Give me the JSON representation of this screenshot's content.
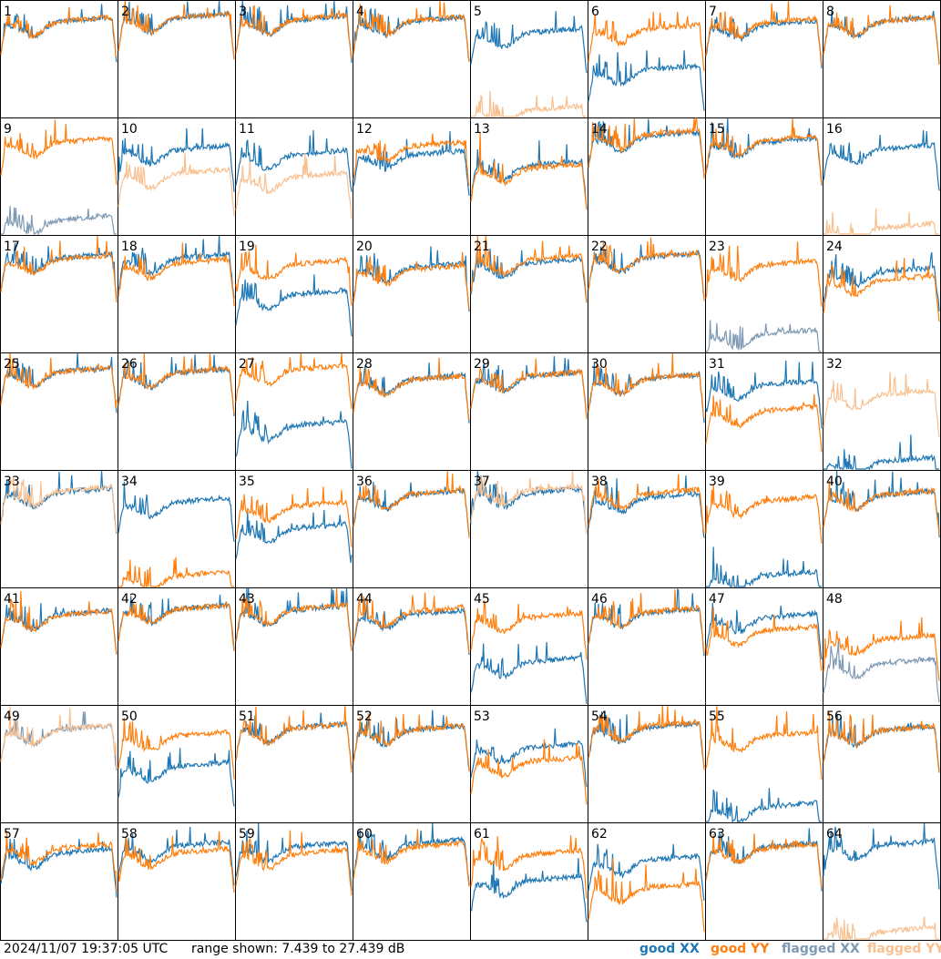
{
  "footer": {
    "timestamp": "2024/11/07 19:37:05 UTC",
    "range_text": "range shown: 7.439 to 27.439 dB"
  },
  "legend": [
    {
      "label": "good XX",
      "color": "#1f77b4"
    },
    {
      "label": "good YY",
      "color": "#ff7f0e"
    },
    {
      "label": "flagged XX",
      "color": "#7f9ab5"
    },
    {
      "label": "flagged YY",
      "color": "#f9c08f"
    }
  ],
  "chart_data": {
    "type": "line",
    "ylim": [
      7.439,
      27.439
    ],
    "yunit": "dB",
    "grid": false,
    "legend_position": "bottom-right",
    "panel_labels": [
      "1",
      "2",
      "3",
      "4",
      "5",
      "6",
      "7",
      "8",
      "9",
      "10",
      "11",
      "12",
      "13",
      "14",
      "15",
      "16",
      "17",
      "18",
      "19",
      "20",
      "21",
      "22",
      "23",
      "24",
      "25",
      "26",
      "27",
      "28",
      "29",
      "30",
      "31",
      "32",
      "33",
      "34",
      "35",
      "36",
      "37",
      "38",
      "39",
      "40",
      "41",
      "42",
      "43",
      "44",
      "45",
      "46",
      "47",
      "48",
      "49",
      "50",
      "51",
      "52",
      "53",
      "54",
      "55",
      "56",
      "57",
      "58",
      "59",
      "60",
      "61",
      "62",
      "63",
      "64"
    ],
    "flagged_xx_panels": [
      9,
      23,
      48,
      49
    ],
    "flagged_yy_panels": [
      5,
      10,
      11,
      16,
      32,
      33,
      37,
      49,
      64
    ],
    "panel_levels_dB": {
      "xx": [
        23.1,
        23.8,
        23.4,
        23.2,
        21.2,
        14.8,
        22.6,
        23.2,
        9.2,
        21.3,
        20.5,
        20.4,
        18.6,
        23.6,
        22.6,
        21.4,
        22.9,
        22.8,
        16.6,
        21.3,
        22.0,
        23.0,
        9.8,
        20.5,
        23.5,
        23.3,
        14.2,
        22.2,
        22.7,
        22.3,
        21.3,
        8.0,
        23.0,
        21.3,
        16.8,
        22.6,
        22.9,
        22.1,
        8.6,
        22.5,
        22.2,
        23.1,
        22.9,
        22.2,
        14.0,
        22.5,
        21.6,
        13.8,
        22.6,
        16.2,
        22.9,
        22.5,
        19.5,
        23.0,
        9.2,
        22.5,
        21.5,
        22.8,
        22.7,
        23.2,
        16.8,
        20.3,
        22.6,
        22.9
      ],
      "yy": [
        23.2,
        23.8,
        23.5,
        23.3,
        7.8,
        21.9,
        23.0,
        23.2,
        22.6,
        17.2,
        16.6,
        21.9,
        18.1,
        23.9,
        22.9,
        7.8,
        22.7,
        21.9,
        21.8,
        20.9,
        22.6,
        23.1,
        21.7,
        19.1,
        23.5,
        23.4,
        23.9,
        22.1,
        22.8,
        22.3,
        16.8,
        19.6,
        23.2,
        8.6,
        20.6,
        22.7,
        23.4,
        22.8,
        21.5,
        22.6,
        22.1,
        23.1,
        23.1,
        22.7,
        21.7,
        22.6,
        19.4,
        17.9,
        22.6,
        21.5,
        22.8,
        22.6,
        17.1,
        23.2,
        21.5,
        22.5,
        22.4,
        21.6,
        21.4,
        22.6,
        21.3,
        15.6,
        22.4,
        8.0
      ]
    }
  }
}
